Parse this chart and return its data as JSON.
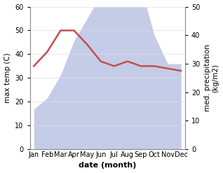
{
  "months": [
    "Jan",
    "Feb",
    "Mar",
    "Apr",
    "May",
    "Jun",
    "Jul",
    "Aug",
    "Sep",
    "Oct",
    "Nov",
    "Dec"
  ],
  "x": [
    0,
    1,
    2,
    3,
    4,
    5,
    6,
    7,
    8,
    9,
    10,
    11
  ],
  "temperature": [
    35,
    41,
    50,
    50,
    44,
    37,
    35,
    37,
    35,
    35,
    34,
    33
  ],
  "precipitation": [
    14,
    18,
    26,
    38,
    46,
    54,
    54,
    57,
    57,
    40,
    30,
    30
  ],
  "temp_color": "#c0504d",
  "precip_fill_color": "#c5cce8",
  "left_ylim": [
    0,
    60
  ],
  "right_ylim": [
    0,
    50
  ],
  "left_yticks": [
    0,
    10,
    20,
    30,
    40,
    50,
    60
  ],
  "right_yticks": [
    0,
    10,
    20,
    30,
    40,
    50
  ],
  "xlabel": "date (month)",
  "ylabel_left": "max temp (C)",
  "ylabel_right": "med. precipitation\n(kg/m2)",
  "figsize": [
    3.18,
    2.47
  ],
  "dpi": 100
}
